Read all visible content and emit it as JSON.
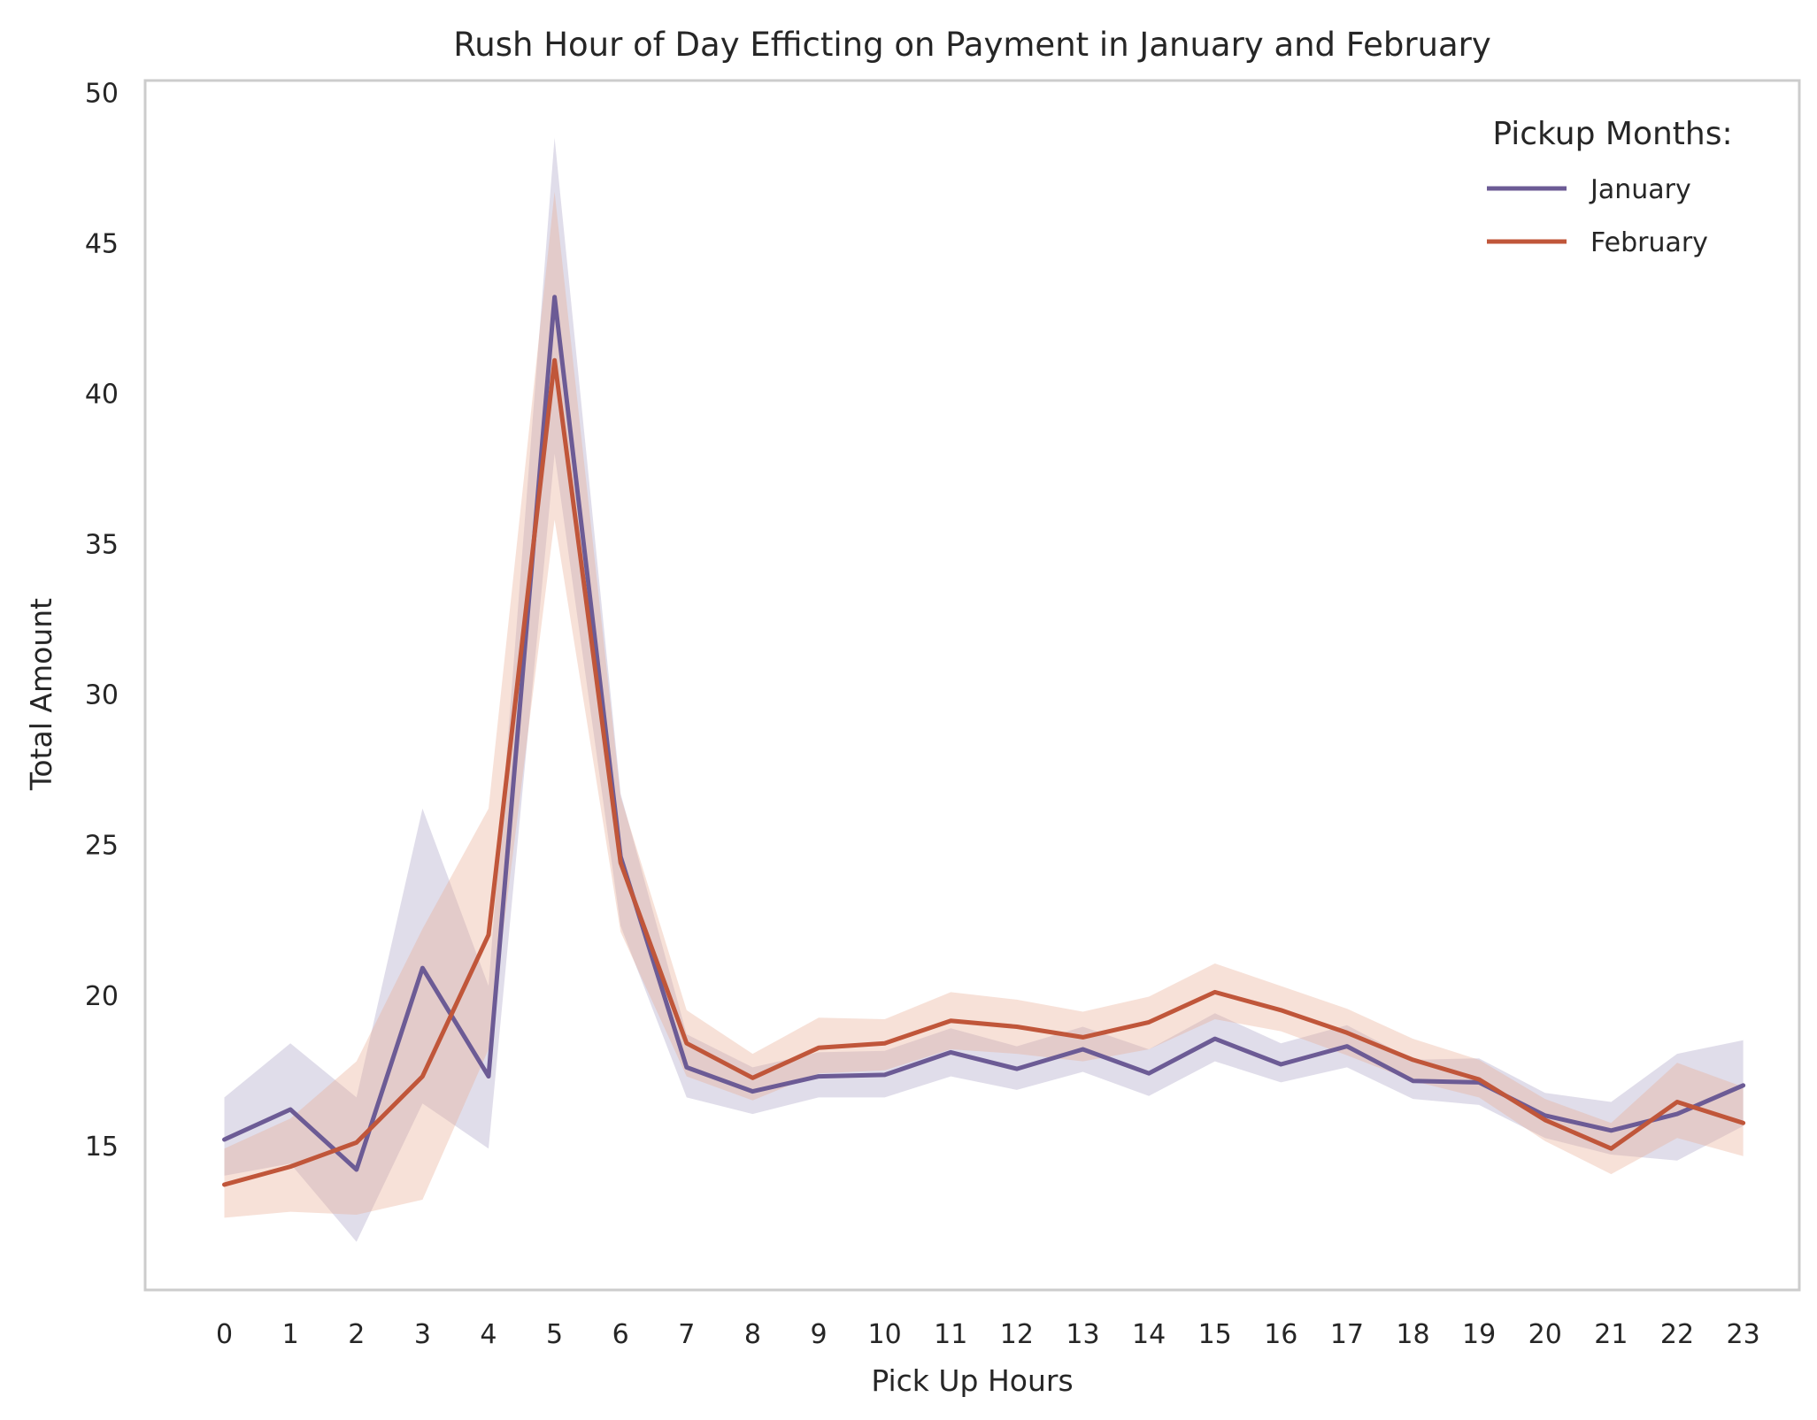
{
  "chart_data": {
    "type": "line",
    "title": "Rush Hour of Day Efficting on Payment in January and February",
    "xlabel": "Pick Up Hours",
    "ylabel": "Total Amount",
    "x": [
      0,
      1,
      2,
      3,
      4,
      5,
      6,
      7,
      8,
      9,
      10,
      11,
      12,
      13,
      14,
      15,
      16,
      17,
      18,
      19,
      20,
      21,
      22,
      23
    ],
    "x_tick_labels": [
      "0",
      "1",
      "2",
      "3",
      "4",
      "5",
      "6",
      "7",
      "8",
      "9",
      "10",
      "11",
      "12",
      "13",
      "14",
      "15",
      "16",
      "17",
      "18",
      "19",
      "20",
      "21",
      "22",
      "23"
    ],
    "y_ticks": [
      15,
      20,
      25,
      30,
      35,
      40,
      45,
      50
    ],
    "y_tick_labels": [
      "15",
      "20",
      "25",
      "30",
      "35",
      "40",
      "45",
      "50"
    ],
    "xlim": [
      -1.2,
      23.85
    ],
    "ylim": [
      10.2,
      50.4
    ],
    "grid": false,
    "legend": {
      "title": "Pickup Months:",
      "position": "top-right"
    },
    "series": [
      {
        "name": "January",
        "color": "#6c5b95",
        "band_color": "#a79fc4",
        "values": [
          15.2,
          16.2,
          14.2,
          20.9,
          17.3,
          43.2,
          24.6,
          17.6,
          16.8,
          17.3,
          17.35,
          18.1,
          17.55,
          18.2,
          17.4,
          18.55,
          17.7,
          18.3,
          17.15,
          17.1,
          16.0,
          15.5,
          16.05,
          17.0
        ],
        "ci_lower": [
          14.0,
          14.4,
          11.8,
          16.4,
          14.9,
          38.0,
          22.3,
          16.6,
          16.05,
          16.6,
          16.6,
          17.3,
          16.85,
          17.45,
          16.65,
          17.8,
          17.1,
          17.6,
          16.55,
          16.35,
          15.25,
          14.7,
          14.5,
          15.65
        ],
        "ci_upper": [
          16.6,
          18.4,
          16.6,
          26.2,
          20.3,
          48.5,
          26.7,
          18.7,
          17.6,
          18.1,
          18.15,
          18.9,
          18.3,
          18.95,
          18.2,
          19.4,
          18.4,
          19.0,
          17.85,
          17.9,
          16.75,
          16.45,
          18.05,
          18.5
        ]
      },
      {
        "name": "February",
        "color": "#c0563a",
        "band_color": "#e8a88f",
        "values": [
          13.7,
          14.3,
          15.1,
          17.3,
          22.0,
          41.1,
          24.4,
          18.4,
          17.25,
          18.25,
          18.4,
          19.15,
          18.95,
          18.6,
          19.1,
          20.1,
          19.5,
          18.75,
          17.85,
          17.2,
          15.85,
          14.9,
          16.45,
          15.75
        ],
        "ci_lower": [
          12.6,
          12.8,
          12.7,
          13.2,
          18.2,
          35.8,
          22.1,
          17.3,
          16.5,
          17.4,
          17.5,
          18.2,
          18.05,
          17.8,
          18.2,
          19.2,
          18.8,
          18.0,
          17.15,
          16.6,
          15.15,
          14.05,
          15.25,
          14.65
        ],
        "ci_upper": [
          14.9,
          15.9,
          17.8,
          22.2,
          26.2,
          46.7,
          26.6,
          19.5,
          18.05,
          19.25,
          19.2,
          20.1,
          19.85,
          19.45,
          19.95,
          21.05,
          20.3,
          19.55,
          18.55,
          17.85,
          16.55,
          15.75,
          17.75,
          16.95
        ]
      }
    ]
  }
}
